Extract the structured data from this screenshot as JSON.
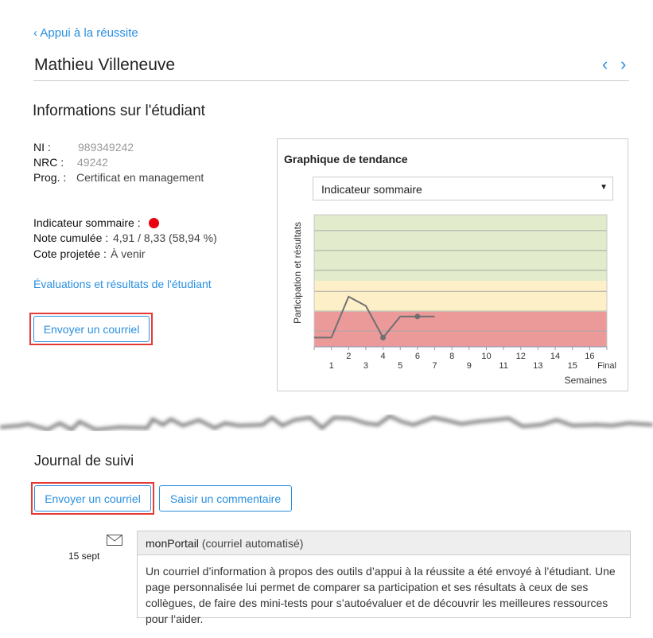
{
  "nav": {
    "back_label": "Appui à la réussite",
    "prev_icon": "chevron-left-icon",
    "next_icon": "chevron-right-icon"
  },
  "student": {
    "name": "Mathieu Villeneuve"
  },
  "info": {
    "title": "Informations sur l'étudiant",
    "ni_label": "NI :",
    "ni": "989349242",
    "nrc_label": "NRC :",
    "nrc": "49242",
    "prog_label": "Prog. :",
    "prog": "Certificat en management",
    "indicator_label": "Indicateur sommaire :",
    "indicator_color": "#e8000b",
    "note_label": "Note cumulée :",
    "note": "4,91 / 8,33 (58,94 %)",
    "cote_label": "Cote projetée :",
    "cote": "À venir",
    "eval_link": "Évaluations et résultats de l'étudiant",
    "email_button": "Envoyer un courriel"
  },
  "trend": {
    "title": "Graphique de tendance",
    "select_value": "Indicateur sommaire"
  },
  "chart_data": {
    "type": "line",
    "ylabel": "Participation et résultats",
    "xlabel": "Semaines",
    "x_ticks": [
      "1",
      "2",
      "3",
      "4",
      "5",
      "6",
      "7",
      "8",
      "9",
      "10",
      "11",
      "12",
      "13",
      "14",
      "15",
      "16",
      "Final"
    ],
    "x": [
      0,
      1,
      2,
      3,
      4,
      5,
      6,
      7
    ],
    "y": [
      7,
      7,
      38,
      31,
      7,
      23,
      23,
      23
    ],
    "markers_at": [
      4,
      6
    ],
    "ylim": [
      0,
      100
    ],
    "zones": [
      {
        "from": 0,
        "to": 26.5,
        "color": "#ec9999"
      },
      {
        "from": 26.5,
        "to": 50,
        "color": "#fdefc8"
      },
      {
        "from": 50,
        "to": 100,
        "color": "#e2ebcb"
      }
    ],
    "grid": true,
    "line_color": "#707070"
  },
  "journal": {
    "title": "Journal de suivi",
    "email_button": "Envoyer un courriel",
    "comment_button": "Saisir un commentaire",
    "entries": [
      {
        "date": "15 sept",
        "icon": "envelope-icon",
        "source": "monPortail",
        "type": "(courriel automatisé)",
        "text": "Un courriel d’information à propos des outils d’appui à la réussite a été envoyé à l’étudiant. Une page personnalisée lui permet de comparer sa participation et ses résultats à ceux de ses collègues, de faire des mini-tests pour s’autoévaluer et de découvrir les meilleures ressources pour l’aider."
      }
    ]
  }
}
